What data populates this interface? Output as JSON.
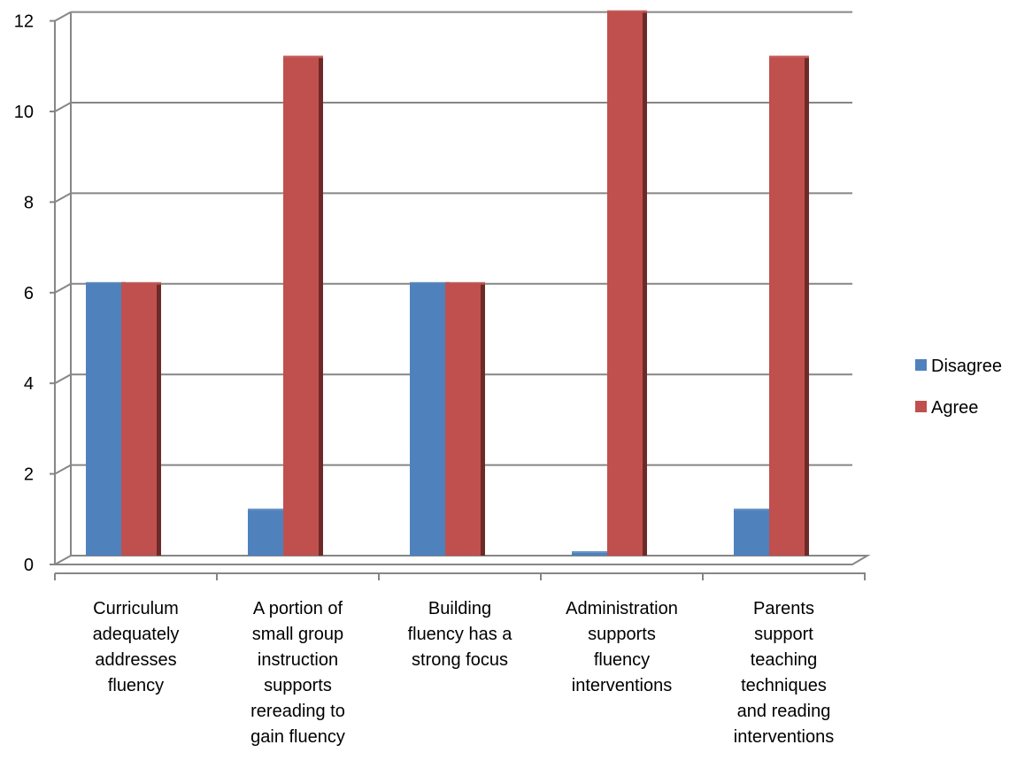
{
  "chart_data": {
    "type": "bar",
    "categories": [
      [
        "Curriculum",
        "adequately",
        "addresses",
        "fluency"
      ],
      [
        "A portion of",
        "small group",
        "instruction",
        "supports",
        "rereading to",
        "gain fluency"
      ],
      [
        "Building",
        "fluency has a",
        "strong focus"
      ],
      [
        "Administration",
        "supports",
        "fluency",
        "interventions"
      ],
      [
        "Parents",
        "support",
        "teaching",
        "techniques",
        "and reading",
        "interventions"
      ]
    ],
    "series": [
      {
        "name": "Disagree",
        "values": [
          6,
          1,
          6,
          0,
          1
        ],
        "color": "#4F81BD",
        "dark": "#2C4D75"
      },
      {
        "name": "Agree",
        "values": [
          6,
          11,
          6,
          12,
          11
        ],
        "color": "#C0504D",
        "dark": "#6E2A28"
      }
    ],
    "ylim": [
      0,
      12
    ],
    "yticks": [
      "0",
      "2",
      "4",
      "6",
      "8",
      "10",
      "12"
    ],
    "grid": true,
    "legend_position": "right",
    "style": "3d-clustered-column"
  }
}
